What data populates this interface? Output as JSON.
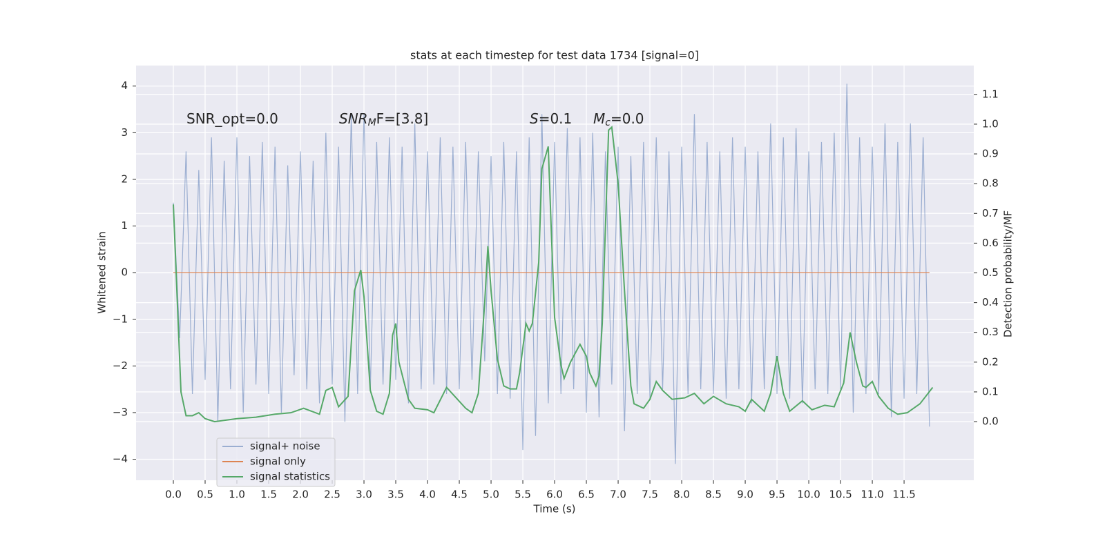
{
  "chart_data": {
    "type": "line",
    "title": "stats at each timestep for test data 1734 [signal=0]",
    "xlabel": "Time (s)",
    "ylabel": "Whitened strain",
    "y2label": "Detection probability/MF",
    "annotations": [
      {
        "text": "SNR_opt=0.0",
        "italic": false
      },
      {
        "text": "SNR",
        "sub": "M",
        "tail": "F=[3.8]",
        "italic": true
      },
      {
        "text": "S",
        "tail": "=0.1",
        "italic": true
      },
      {
        "text": "M",
        "sub": "c",
        "tail": "=0.0",
        "italic": true
      }
    ],
    "xlim": [
      -0.587,
      12.597
    ],
    "ylim": [
      -4.45,
      4.44
    ],
    "y2lim": [
      -0.197,
      1.197
    ],
    "xticks": [
      {
        "value": 0,
        "label": "0.0"
      },
      {
        "value": 0.5,
        "label": "0.5"
      },
      {
        "value": 1,
        "label": "1.0"
      },
      {
        "value": 1.5,
        "label": "1.5"
      },
      {
        "value": 2,
        "label": "2.0"
      },
      {
        "value": 2.5,
        "label": "2.5"
      },
      {
        "value": 3,
        "label": "3.0"
      },
      {
        "value": 3.5,
        "label": "3.5"
      },
      {
        "value": 4,
        "label": "4.0"
      },
      {
        "value": 4.5,
        "label": "4.5"
      },
      {
        "value": 5,
        "label": "5.0"
      },
      {
        "value": 5.5,
        "label": "5.5"
      },
      {
        "value": 6,
        "label": "6.0"
      },
      {
        "value": 6.5,
        "label": "6.5"
      },
      {
        "value": 7,
        "label": "7.0"
      },
      {
        "value": 7.5,
        "label": "7.5"
      },
      {
        "value": 8,
        "label": "8.0"
      },
      {
        "value": 8.5,
        "label": "8.5"
      },
      {
        "value": 9,
        "label": "9.0"
      },
      {
        "value": 9.5,
        "label": "9.5"
      },
      {
        "value": 10,
        "label": "10.0"
      },
      {
        "value": 10.5,
        "label": "10.5"
      },
      {
        "value": 11,
        "label": "11.0"
      },
      {
        "value": 11.5,
        "label": "11.5"
      }
    ],
    "yticks": [
      {
        "value": -4,
        "label": "−4"
      },
      {
        "value": -3,
        "label": "−3"
      },
      {
        "value": -2,
        "label": "−2"
      },
      {
        "value": -1,
        "label": "−1"
      },
      0,
      1,
      2,
      3,
      4
    ],
    "y2ticks": [
      {
        "value": 0,
        "label": "0.0"
      },
      {
        "value": 0.1,
        "label": "0.1"
      },
      {
        "value": 0.2,
        "label": "0.2"
      },
      {
        "value": 0.3,
        "label": "0.3"
      },
      {
        "value": 0.4,
        "label": "0.4"
      },
      {
        "value": 0.5,
        "label": "0.5"
      },
      {
        "value": 0.6,
        "label": "0.6"
      },
      {
        "value": 0.7,
        "label": "0.7"
      },
      {
        "value": 0.8,
        "label": "0.8"
      },
      {
        "value": 0.9,
        "label": "0.9"
      },
      {
        "value": 1,
        "label": "1.0"
      },
      {
        "value": 1.1,
        "label": "1.1"
      }
    ],
    "grid": true,
    "legend": "lower left",
    "series": [
      {
        "name": "signal+ noise",
        "color": "#4c72b0",
        "opacity": 0.5,
        "x": [
          0,
          0.1,
          0.2,
          0.3,
          0.4,
          0.5,
          0.6,
          0.7,
          0.8,
          0.9,
          1,
          1.1,
          1.2,
          1.3,
          1.4,
          1.5,
          1.6,
          1.7,
          1.8,
          1.9,
          2,
          2.1,
          2.2,
          2.3,
          2.4,
          2.5,
          2.6,
          2.7,
          2.8,
          2.9,
          3,
          3.1,
          3.2,
          3.3,
          3.4,
          3.5,
          3.6,
          3.7,
          3.8,
          3.9,
          4,
          4.1,
          4.2,
          4.3,
          4.4,
          4.5,
          4.6,
          4.7,
          4.8,
          4.9,
          5,
          5.1,
          5.2,
          5.3,
          5.4,
          5.5,
          5.6,
          5.7,
          5.8,
          5.9,
          6,
          6.1,
          6.2,
          6.3,
          6.4,
          6.5,
          6.6,
          6.7,
          6.8,
          6.9,
          7,
          7.1,
          7.2,
          7.3,
          7.4,
          7.5,
          7.6,
          7.7,
          7.8,
          7.9,
          8,
          8.1,
          8.2,
          8.3,
          8.4,
          8.5,
          8.6,
          8.7,
          8.8,
          8.9,
          9,
          9.1,
          9.2,
          9.3,
          9.4,
          9.5,
          9.6,
          9.7,
          9.8,
          9.9,
          10,
          10.1,
          10.2,
          10.3,
          10.4,
          10.5,
          10.6,
          10.7,
          10.8,
          10.9,
          11,
          11.1,
          11.2,
          11.3,
          11.4,
          11.5,
          11.6,
          11.7,
          11.8,
          11.9
        ],
        "values": [
          1.5,
          -1.4,
          2.6,
          -2.6,
          2.2,
          -2.3,
          2.9,
          -3.2,
          2.4,
          -2.5,
          2.9,
          -3.0,
          2.5,
          -2.4,
          2.8,
          -2.6,
          2.7,
          -3.0,
          2.3,
          -2.2,
          2.6,
          -2.5,
          2.4,
          -2.8,
          3.0,
          -2.4,
          2.7,
          -3.2,
          3.4,
          -2.6,
          3.4,
          -2.5,
          2.8,
          -2.4,
          2.9,
          -2.3,
          2.7,
          -2.8,
          3.2,
          -2.5,
          2.6,
          -2.4,
          2.9,
          -2.6,
          2.7,
          -2.5,
          2.8,
          -2.3,
          2.6,
          -1.9,
          2.5,
          -2.6,
          2.8,
          -2.7,
          2.6,
          -3.8,
          2.9,
          -3.5,
          3.4,
          -2.8,
          2.8,
          -2.6,
          3.1,
          -2.5,
          2.9,
          -3.0,
          3.0,
          -3.1,
          2.6,
          -2.4,
          2.7,
          -3.4,
          2.5,
          -2.6,
          2.8,
          -2.7,
          2.9,
          -2.5,
          2.6,
          -4.1,
          2.7,
          -2.6,
          3.4,
          -2.5,
          2.8,
          -2.6,
          2.6,
          -2.7,
          2.9,
          -2.5,
          2.7,
          -2.8,
          2.6,
          -2.5,
          3.2,
          -2.6,
          2.9,
          -2.7,
          3.1,
          -2.8,
          2.6,
          -2.5,
          2.8,
          -2.6,
          3.0,
          -2.5,
          4.05,
          -3.0,
          2.9,
          -2.6,
          2.7,
          -2.6,
          3.2,
          -3.1,
          2.8,
          -2.7,
          3.2,
          -2.6,
          2.9,
          -3.3
        ]
      },
      {
        "name": "signal only",
        "color": "#dd8452",
        "x": [
          0,
          11.9
        ],
        "values": [
          0,
          0
        ]
      },
      {
        "name": "signal statistics",
        "color": "#55a868",
        "axis": "y2",
        "x": [
          0,
          0.12,
          0.2,
          0.3,
          0.4,
          0.5,
          0.65,
          1.0,
          1.3,
          1.6,
          1.85,
          2.05,
          2.3,
          2.4,
          2.5,
          2.6,
          2.75,
          2.85,
          2.95,
          3.0,
          3.1,
          3.2,
          3.3,
          3.4,
          3.45,
          3.5,
          3.55,
          3.7,
          3.8,
          4.0,
          4.1,
          4.3,
          4.45,
          4.6,
          4.7,
          4.8,
          4.9,
          4.95,
          5.0,
          5.1,
          5.2,
          5.3,
          5.4,
          5.45,
          5.55,
          5.6,
          5.65,
          5.75,
          5.8,
          5.9,
          5.95,
          6.0,
          6.1,
          6.15,
          6.25,
          6.4,
          6.5,
          6.55,
          6.65,
          6.7,
          6.75,
          6.85,
          6.9,
          7.0,
          7.1,
          7.2,
          7.25,
          7.4,
          7.5,
          7.6,
          7.7,
          7.85,
          8.05,
          8.2,
          8.35,
          8.5,
          8.7,
          8.9,
          9.0,
          9.1,
          9.3,
          9.4,
          9.5,
          9.6,
          9.7,
          9.9,
          10.05,
          10.25,
          10.4,
          10.55,
          10.65,
          10.75,
          10.85,
          10.9,
          11.0,
          11.1,
          11.25,
          11.4,
          11.55,
          11.75,
          11.95
        ],
        "values": [
          0.73,
          0.1,
          0.02,
          0.02,
          0.03,
          0.01,
          0.0,
          0.01,
          0.015,
          0.025,
          0.03,
          0.045,
          0.025,
          0.105,
          0.115,
          0.05,
          0.085,
          0.44,
          0.51,
          0.42,
          0.105,
          0.035,
          0.025,
          0.095,
          0.29,
          0.33,
          0.2,
          0.075,
          0.045,
          0.04,
          0.03,
          0.115,
          0.08,
          0.045,
          0.03,
          0.095,
          0.4,
          0.59,
          0.44,
          0.21,
          0.12,
          0.11,
          0.11,
          0.165,
          0.33,
          0.305,
          0.33,
          0.535,
          0.85,
          0.925,
          0.63,
          0.35,
          0.19,
          0.145,
          0.2,
          0.26,
          0.22,
          0.165,
          0.12,
          0.155,
          0.33,
          0.98,
          0.99,
          0.8,
          0.44,
          0.12,
          0.06,
          0.045,
          0.075,
          0.135,
          0.105,
          0.075,
          0.08,
          0.095,
          0.06,
          0.085,
          0.06,
          0.05,
          0.035,
          0.075,
          0.035,
          0.095,
          0.22,
          0.095,
          0.035,
          0.07,
          0.04,
          0.055,
          0.05,
          0.13,
          0.3,
          0.2,
          0.12,
          0.115,
          0.135,
          0.085,
          0.045,
          0.025,
          0.03,
          0.06,
          0.115
        ]
      }
    ]
  }
}
